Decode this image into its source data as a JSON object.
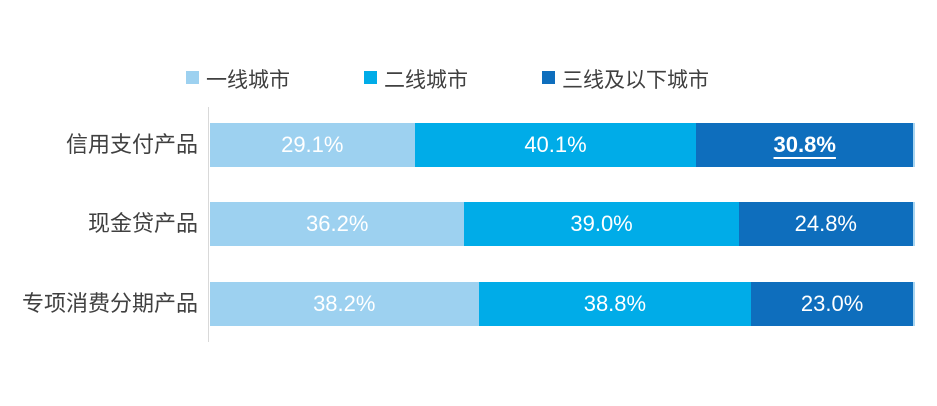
{
  "page": {
    "background": "#FFFFFF"
  },
  "chart_data": {
    "type": "bar",
    "variant": "horizontal-stacked",
    "title": "",
    "xlabel": "",
    "ylabel": "",
    "xlim": [
      0,
      100
    ],
    "grid": false,
    "legend_position": "top",
    "categories": [
      "信用支付产品",
      "现金贷产品",
      "专项消费分期产品"
    ],
    "series": [
      {
        "name": "一线城市",
        "color": "#9DD1F0",
        "values": [
          29.1,
          36.2,
          38.2
        ]
      },
      {
        "name": "二线城市",
        "color": "#00ACE8",
        "values": [
          40.1,
          39.0,
          38.8
        ]
      },
      {
        "name": "三线及以下城市",
        "color": "#0E6EBD",
        "values": [
          30.8,
          24.8,
          23.0
        ]
      }
    ],
    "value_suffix": "%",
    "value_decimals": 1,
    "emphasized": {
      "category_index": 0,
      "series_index": 2,
      "style": "bold-underline"
    },
    "colors": {
      "axis_line": "#D9D9D9",
      "category_label": "#404040",
      "legend_label": "#404040",
      "value_label": "#FFFFFF",
      "bar_edge": "#A8D5F1"
    }
  }
}
